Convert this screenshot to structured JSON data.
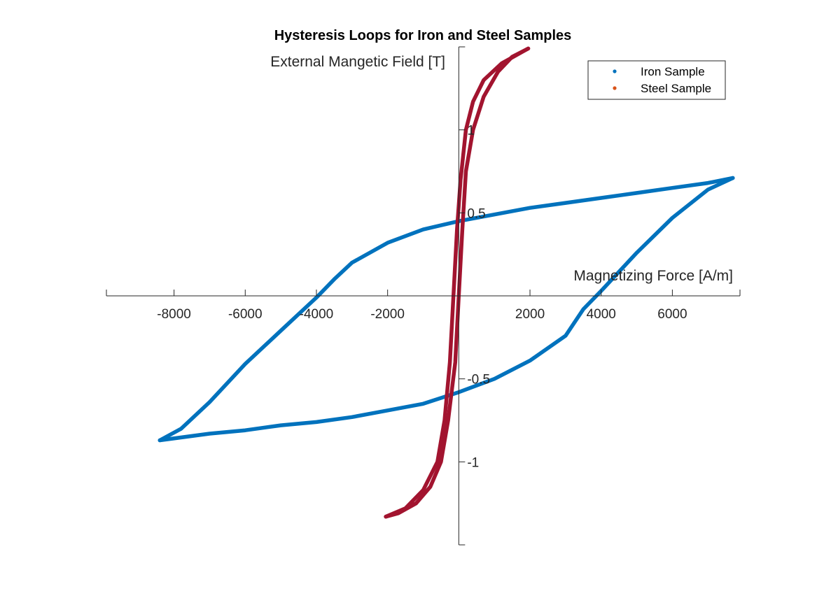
{
  "chart_data": {
    "type": "scatter",
    "title": "Hysteresis Loops for Iron and Steel Samples",
    "xlabel": "Magnetizing Force [A/m]",
    "ylabel": "External Mangetic Field [T]",
    "xlim": [
      -9900,
      7900
    ],
    "ylim": [
      -1.5,
      1.5
    ],
    "axis_origin": "center",
    "grid": false,
    "legend_position": "top-right",
    "x_ticks": [
      -8000,
      -6000,
      -4000,
      -2000,
      2000,
      4000,
      6000
    ],
    "x_tick_labels": [
      "-8000",
      "-6000",
      "-4000",
      "-2000",
      "2000",
      "4000",
      "6000"
    ],
    "y_ticks": [
      1,
      0.5,
      -0.5,
      -1
    ],
    "y_tick_labels": [
      "1",
      "0.5",
      "-0.5",
      "-1"
    ],
    "series": [
      {
        "name": "Iron Sample",
        "color": "#0072BD",
        "upper_branch": [
          [
            7700,
            0.71
          ],
          [
            7000,
            0.68
          ],
          [
            6000,
            0.65
          ],
          [
            5000,
            0.62
          ],
          [
            4000,
            0.59
          ],
          [
            3000,
            0.56
          ],
          [
            2000,
            0.53
          ],
          [
            1000,
            0.49
          ],
          [
            0,
            0.45
          ],
          [
            -1000,
            0.4
          ],
          [
            -2000,
            0.32
          ],
          [
            -3000,
            0.2
          ],
          [
            -3500,
            0.1
          ],
          [
            -4000,
            -0.01
          ],
          [
            -5000,
            -0.21
          ],
          [
            -6000,
            -0.41
          ],
          [
            -7000,
            -0.64
          ],
          [
            -7800,
            -0.8
          ],
          [
            -8400,
            -0.87
          ]
        ],
        "lower_branch": [
          [
            -8400,
            -0.87
          ],
          [
            -7000,
            -0.83
          ],
          [
            -6000,
            -0.81
          ],
          [
            -5000,
            -0.78
          ],
          [
            -4000,
            -0.76
          ],
          [
            -3000,
            -0.73
          ],
          [
            -2000,
            -0.69
          ],
          [
            -1000,
            -0.65
          ],
          [
            0,
            -0.58
          ],
          [
            1000,
            -0.5
          ],
          [
            2000,
            -0.39
          ],
          [
            3000,
            -0.24
          ],
          [
            3500,
            -0.08
          ],
          [
            4000,
            0.03
          ],
          [
            5000,
            0.26
          ],
          [
            6000,
            0.47
          ],
          [
            7000,
            0.64
          ],
          [
            7700,
            0.71
          ]
        ]
      },
      {
        "name": "Steel Sample",
        "color": "#D95319",
        "render_color": "#A2142F",
        "upper_branch": [
          [
            1950,
            1.49
          ],
          [
            1700,
            1.46
          ],
          [
            1200,
            1.4
          ],
          [
            700,
            1.3
          ],
          [
            400,
            1.17
          ],
          [
            200,
            1.0
          ],
          [
            50,
            0.7
          ],
          [
            -50,
            0.4
          ],
          [
            -150,
            0.0
          ],
          [
            -250,
            -0.4
          ],
          [
            -400,
            -0.75
          ],
          [
            -600,
            -1.0
          ],
          [
            -1000,
            -1.17
          ],
          [
            -1500,
            -1.28
          ],
          [
            -2050,
            -1.33
          ]
        ],
        "lower_branch": [
          [
            -2050,
            -1.33
          ],
          [
            -1700,
            -1.31
          ],
          [
            -1200,
            -1.25
          ],
          [
            -800,
            -1.15
          ],
          [
            -500,
            -1.0
          ],
          [
            -300,
            -0.75
          ],
          [
            -100,
            -0.4
          ],
          [
            0,
            0.0
          ],
          [
            100,
            0.4
          ],
          [
            200,
            0.75
          ],
          [
            400,
            1.0
          ],
          [
            700,
            1.2
          ],
          [
            1100,
            1.35
          ],
          [
            1500,
            1.44
          ],
          [
            1950,
            1.49
          ]
        ]
      }
    ]
  }
}
